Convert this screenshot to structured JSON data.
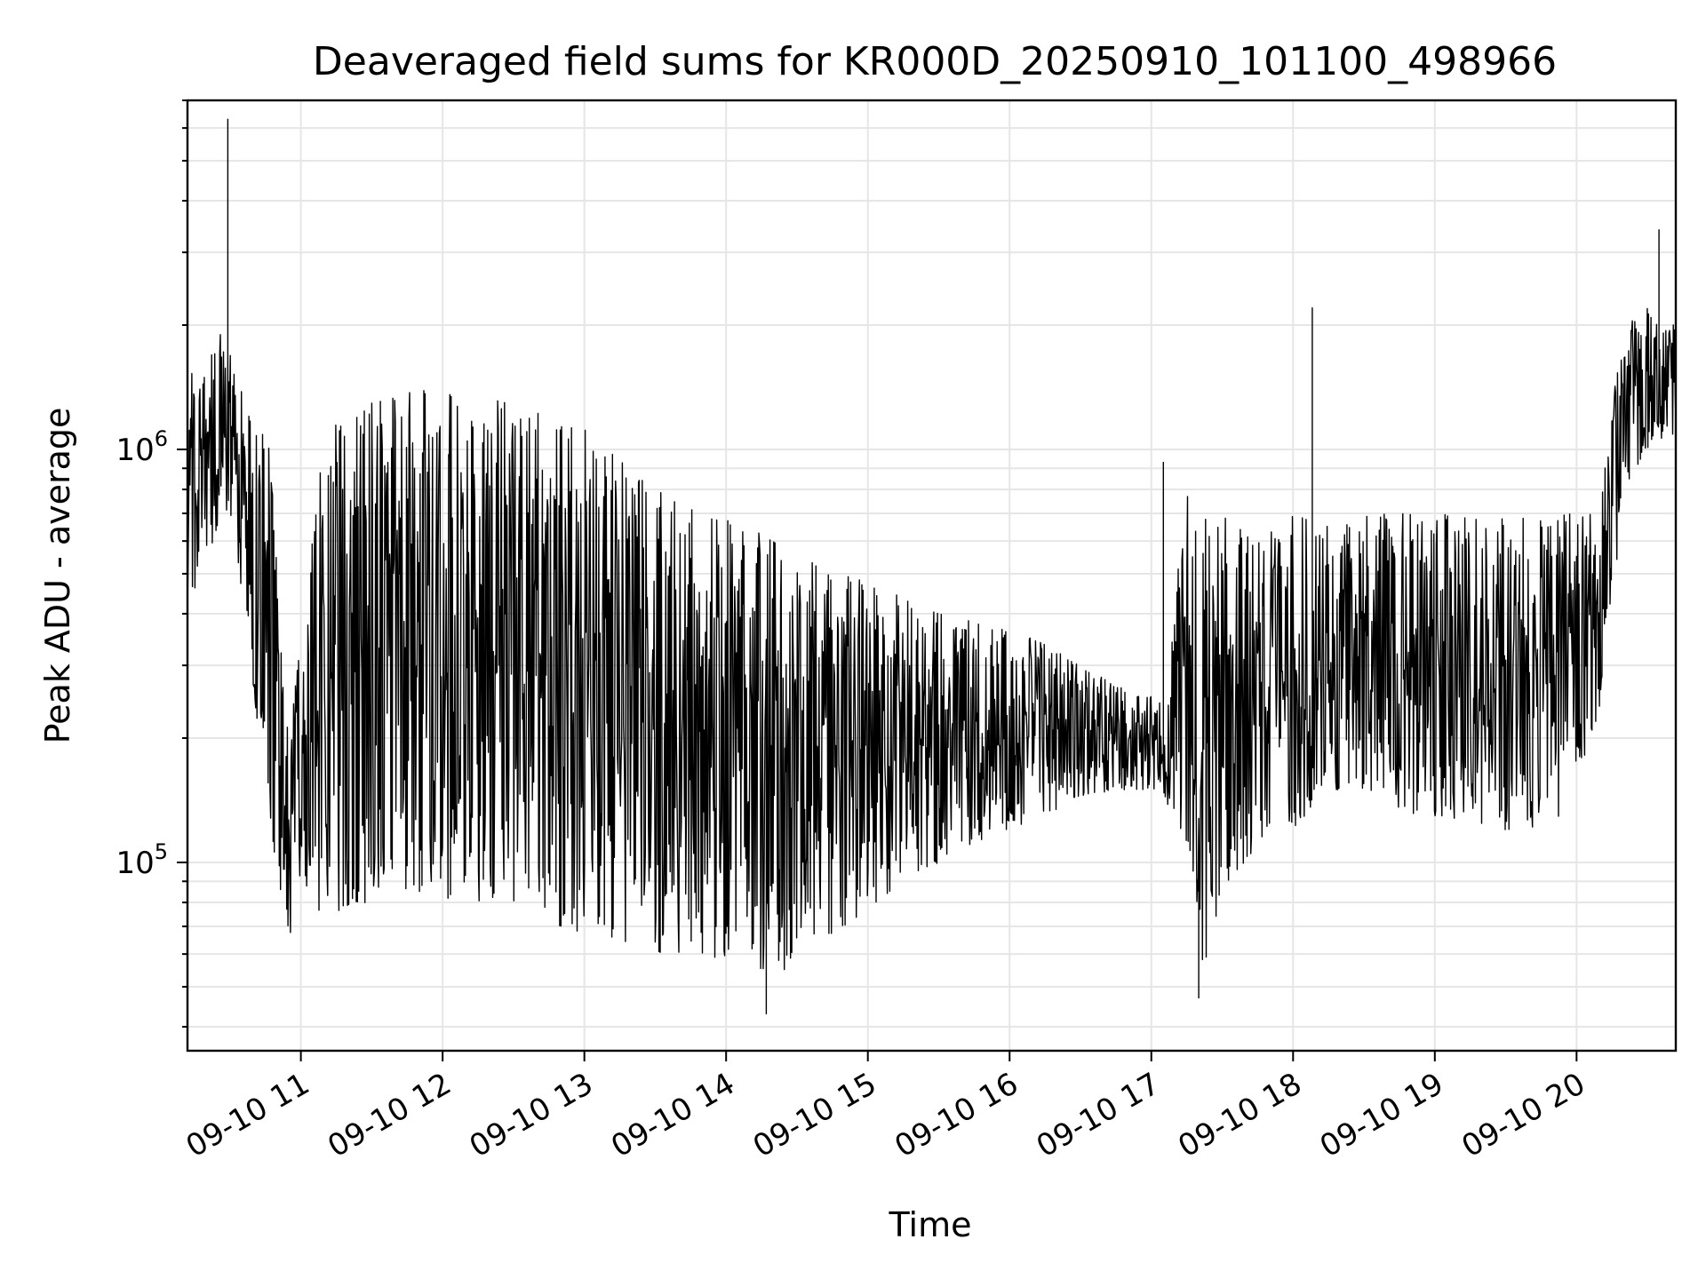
{
  "chart_data": {
    "type": "line",
    "title": "Deaveraged field sums for KR000D_20250910_101100_498966",
    "xlabel": "Time",
    "ylabel": "Peak ADU - average",
    "yscale": "log",
    "xlim": [
      "2025-09-10 10:12",
      "2025-09-10 20:42"
    ],
    "ylim": [
      35000,
      7000000
    ],
    "grid": true,
    "x_tick_labels": [
      "09-10 11",
      "09-10 12",
      "09-10 13",
      "09-10 14",
      "09-10 15",
      "09-10 16",
      "09-10 17",
      "09-10 18",
      "09-10 19",
      "09-10 20"
    ],
    "x_ticks": [
      "2025-09-10 11:00",
      "2025-09-10 12:00",
      "2025-09-10 13:00",
      "2025-09-10 14:00",
      "2025-09-10 15:00",
      "2025-09-10 16:00",
      "2025-09-10 17:00",
      "2025-09-10 18:00",
      "2025-09-10 19:00",
      "2025-09-10 20:00"
    ],
    "y_ticks": [
      {
        "value": 100000,
        "base": "10",
        "exp": "5"
      },
      {
        "value": 1000000,
        "base": "10",
        "exp": "6"
      }
    ],
    "series": [
      {
        "color": "#000000",
        "envelope": {
          "time": [
            "2025-09-10 10:12",
            "2025-09-10 10:25",
            "2025-09-10 10:28",
            "2025-09-10 10:32",
            "2025-09-10 10:40",
            "2025-09-10 10:47",
            "2025-09-10 10:55",
            "2025-09-10 11:10",
            "2025-09-10 11:30",
            "2025-09-10 11:50",
            "2025-09-10 12:10",
            "2025-09-10 12:30",
            "2025-09-10 12:50",
            "2025-09-10 13:10",
            "2025-09-10 13:30",
            "2025-09-10 13:50",
            "2025-09-10 14:10",
            "2025-09-10 14:30",
            "2025-09-10 14:50",
            "2025-09-10 15:10",
            "2025-09-10 15:30",
            "2025-09-10 15:50",
            "2025-09-10 16:10",
            "2025-09-10 16:30",
            "2025-09-10 16:50",
            "2025-09-10 17:05",
            "2025-09-10 17:15",
            "2025-09-10 17:22",
            "2025-09-10 17:30",
            "2025-09-10 17:45",
            "2025-09-10 18:00",
            "2025-09-10 18:15",
            "2025-09-10 18:30",
            "2025-09-10 18:50",
            "2025-09-10 19:10",
            "2025-09-10 19:30",
            "2025-09-10 19:50",
            "2025-09-10 20:10",
            "2025-09-10 20:15",
            "2025-09-10 20:20",
            "2025-09-10 20:30",
            "2025-09-10 20:42"
          ],
          "low": [
            400000,
            600000,
            700000,
            600000,
            250000,
            120000,
            65000,
            75000,
            80000,
            85000,
            80000,
            80000,
            70000,
            65000,
            60000,
            60000,
            55000,
            55000,
            70000,
            85000,
            100000,
            115000,
            125000,
            145000,
            150000,
            150000,
            90000,
            55000,
            85000,
            110000,
            120000,
            150000,
            150000,
            130000,
            125000,
            120000,
            120000,
            220000,
            400000,
            800000,
            1000000,
            1100000
          ],
          "high": [
            1500000,
            1800000,
            2200000,
            1500000,
            1200000,
            1000000,
            200000,
            1100000,
            1300000,
            1400000,
            1350000,
            1300000,
            1250000,
            1000000,
            800000,
            700000,
            650000,
            550000,
            500000,
            450000,
            400000,
            380000,
            350000,
            300000,
            260000,
            250000,
            800000,
            750000,
            700000,
            600000,
            700000,
            650000,
            700000,
            700000,
            700000,
            680000,
            700000,
            700000,
            1300000,
            2000000,
            2200000,
            2000000
          ]
        },
        "spikes": [
          {
            "time": "2025-09-10 10:29",
            "value": 6300000
          },
          {
            "time": "2025-09-10 10:29",
            "value": 4300000
          },
          {
            "time": "2025-09-10 17:05",
            "value": 930000
          },
          {
            "time": "2025-09-10 18:08",
            "value": 2200000
          },
          {
            "time": "2025-09-10 17:20",
            "value": 47000
          },
          {
            "time": "2025-09-10 14:17",
            "value": 43000
          },
          {
            "time": "2025-09-10 20:35",
            "value": 3400000
          }
        ]
      }
    ]
  }
}
